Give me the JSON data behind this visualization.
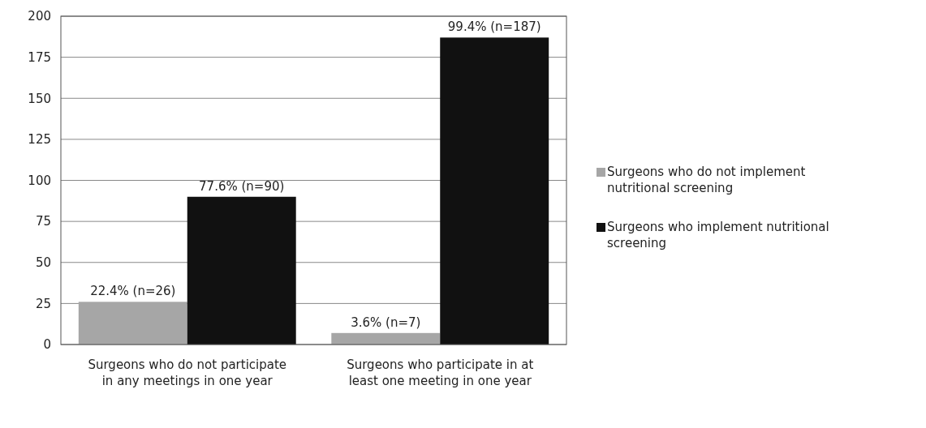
{
  "chart_data": {
    "type": "bar",
    "categories": [
      "Surgeons who do not participate in any meetings in one year",
      "Surgeons who participate in at least one meeting in one year"
    ],
    "series": [
      {
        "name": "Surgeons who do not implement nutritional screening",
        "color": "#a6a6a6",
        "values": [
          26,
          7
        ],
        "value_labels": [
          "22.4% (n=26)",
          "3.6% (n=7)"
        ]
      },
      {
        "name": "Surgeons who implement nutritional screening",
        "color": "#111111",
        "values": [
          90,
          187
        ],
        "value_labels": [
          "77.6% (n=90)",
          "99.4% (n=187)"
        ]
      }
    ],
    "ylim": [
      0,
      200
    ],
    "yticks": [
      0,
      25,
      50,
      75,
      100,
      125,
      150,
      175,
      200
    ],
    "grid": "y",
    "legend": "right"
  }
}
